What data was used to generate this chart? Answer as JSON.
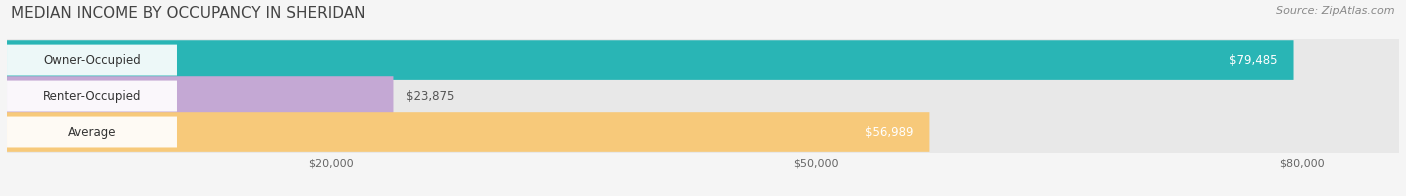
{
  "title": "MEDIAN INCOME BY OCCUPANCY IN SHERIDAN",
  "source": "Source: ZipAtlas.com",
  "categories": [
    "Owner-Occupied",
    "Renter-Occupied",
    "Average"
  ],
  "values": [
    79485,
    23875,
    56989
  ],
  "bar_colors": [
    "#29b5b5",
    "#c4a8d4",
    "#f7c97a"
  ],
  "bar_labels": [
    "$79,485",
    "$23,875",
    "$56,989"
  ],
  "label_inside": [
    true,
    false,
    true
  ],
  "label_color_inside": "#ffffff",
  "label_color_outside": "#555555",
  "bg_bar_color": "#e8e8e8",
  "xlim": [
    0,
    86000
  ],
  "xticks": [
    20000,
    50000,
    80000
  ],
  "xtick_labels": [
    "$20,000",
    "$50,000",
    "$80,000"
  ],
  "figsize": [
    14.06,
    1.96
  ],
  "dpi": 100,
  "title_fontsize": 11,
  "source_fontsize": 8,
  "bar_height": 0.58,
  "bar_label_fontsize": 8.5,
  "category_fontsize": 8.5,
  "background_color": "#ffffff",
  "fig_background": "#f5f5f5"
}
